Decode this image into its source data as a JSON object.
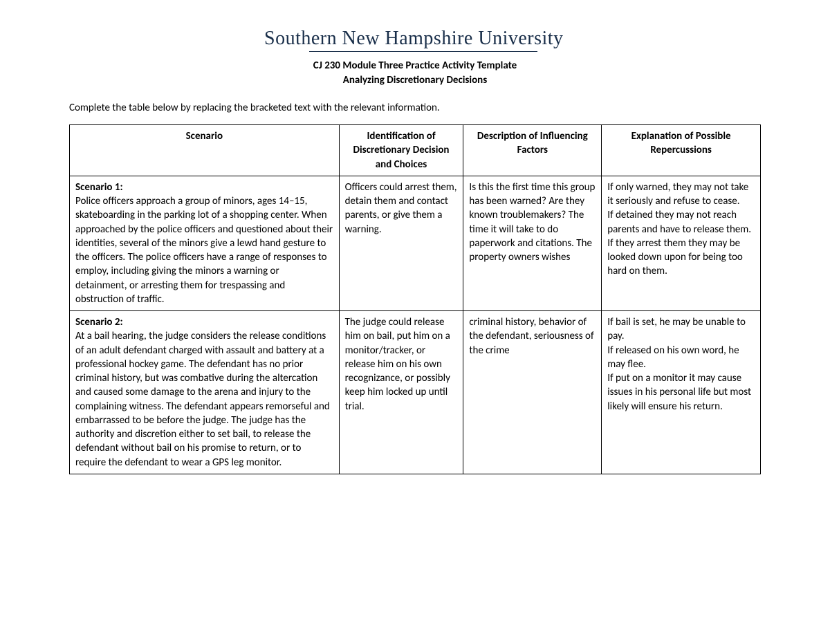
{
  "logo_text": "Southern New Hampshire University",
  "title_line1": "CJ 230 Module Three Practice Activity Template",
  "title_line2": "Analyzing Discretionary Decisions",
  "instruction": "Complete the table below by replacing the bracketed text with the relevant information.",
  "columns": {
    "c1": "Scenario",
    "c2": "Identification of Discretionary Decision and Choices",
    "c3": "Description of Influencing Factors",
    "c4": "Explanation of Possible Repercussions"
  },
  "rows": [
    {
      "title": "Scenario 1:",
      "scenario": "Police officers approach a group of minors, ages 14–15, skateboarding in the parking lot of a shopping center. When approached by the police officers and questioned about their identities, several of the minors give a lewd hand gesture to the officers. The police officers have a range of responses to employ, including giving the minors a warning or detainment, or arresting them for trespassing and obstruction of traffic.",
      "identification": "Officers could arrest them, detain them and contact parents, or give them a warning.",
      "factors": "Is this the first time this group has been warned? Are they known troublemakers? The time it will take to do paperwork and citations. The property owners wishes",
      "repercussions": "If only warned, they may not take it seriously and refuse to cease.\nIf detained they may not reach parents and have to release them. If they arrest them they may be looked down upon for being too hard on them."
    },
    {
      "title": "Scenario 2:",
      "scenario": "At a bail hearing, the judge considers the release conditions of an adult defendant charged with assault and battery at a professional hockey game. The defendant has no prior criminal history, but was combative during the altercation and caused some damage to the arena and injury to the complaining witness. The defendant appears remorseful and embarrassed to be before the judge. The judge has the authority and discretion either to set bail, to release the defendant without bail on his promise to return, or to require the defendant to wear a GPS leg monitor.",
      "identification": "The judge could release him on bail, put him on a monitor/tracker, or release him on his own recognizance, or possibly keep him locked up until trial.",
      "factors": "criminal history, behavior of the defendant, seriousness of the crime",
      "repercussions": "If bail is set, he may be unable to pay.\nIf released on his own word, he may flee.\nIf put on a monitor it may cause issues in his personal life but most likely will ensure his return."
    }
  ]
}
